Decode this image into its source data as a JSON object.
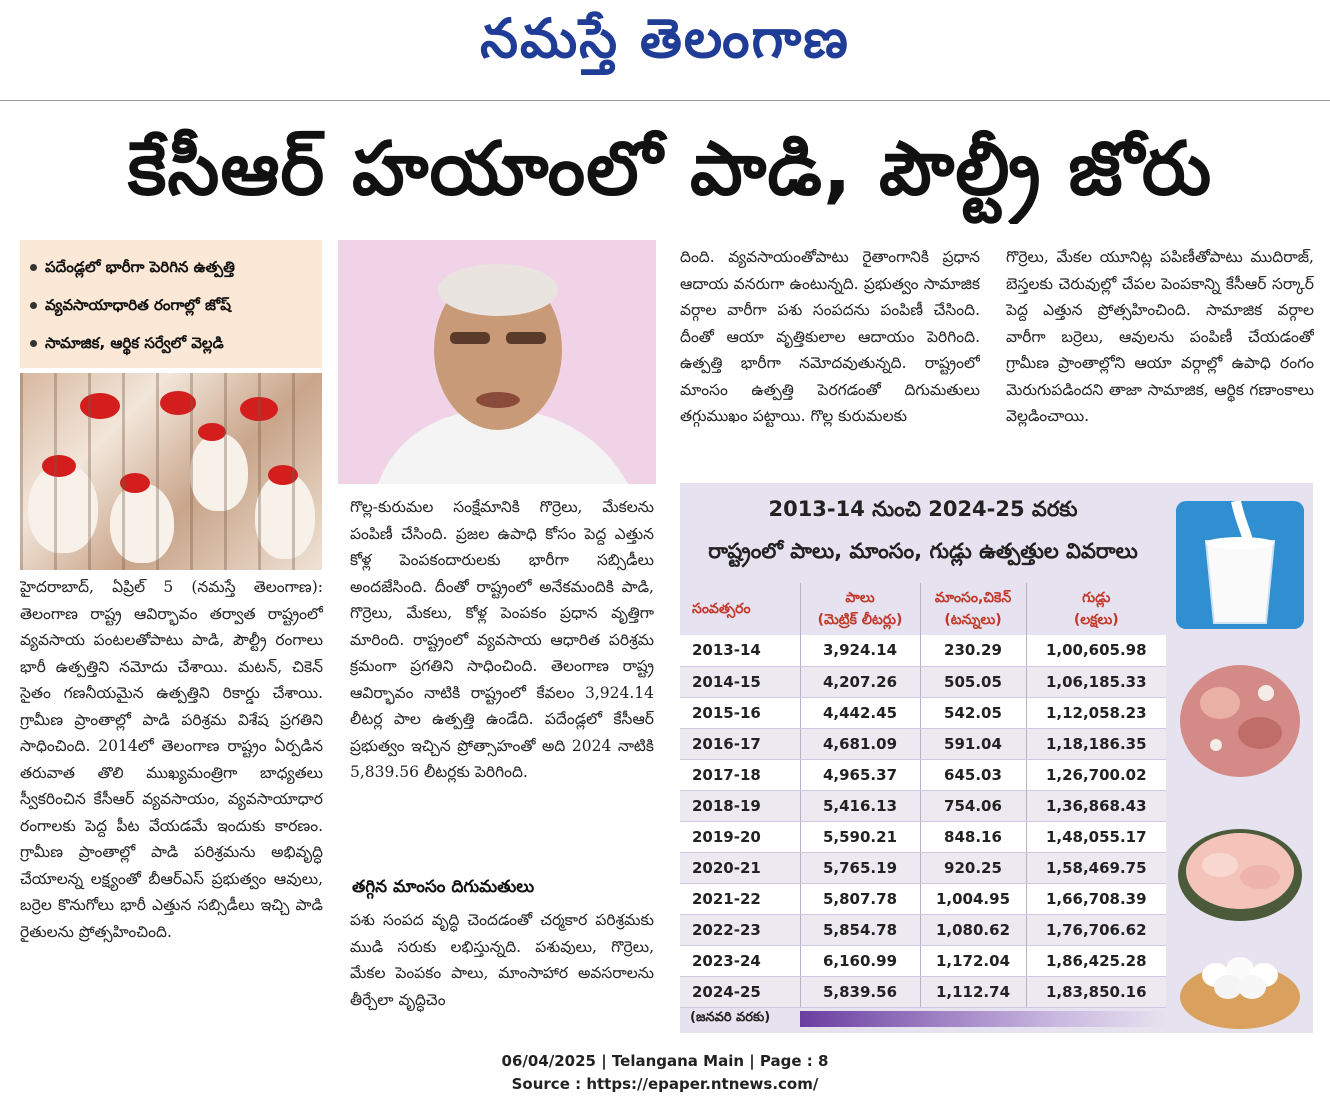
{
  "masthead": {
    "logo": "నమస్తే తెలంగాణ"
  },
  "headline": "కేసీఆర్ హయాంలో పాడి, పౌల్ట్రీ జోరు",
  "highlights": [
    "పదేండ్లలో భారీగా పెరిగిన ఉత్పత్తి",
    "వ్యవసాయాధారిత రంగాల్లో జోష్",
    "సామాజిక, ఆర్థిక సర్వేలో వెల్లడి"
  ],
  "col1": "హైదరాబాద్, ఏప్రిల్ 5 (నమస్తే తెలంగాణ): తెలంగాణ రాష్ట్ర ఆవిర్భావం తర్వాత రాష్ట్రంలో వ్యవసాయ పంటలతోపాటు పాడి, పౌల్ట్రీ రంగాలు భారీ ఉత్పత్తిని నమోదు చేశాయి. మటన్, చికెన్ సైతం గణనీయమైన ఉత్పత్తిని రికార్డు చేశాయి. గ్రామీణ ప్రాంతాల్లో పాడి పరిశ్రమ విశేష ప్రగతిని సాధించింది. 2014లో తెలంగాణ రాష్ట్రం ఏర్పడిన తరువాత తొలి ముఖ్యమంత్రిగా బాధ్యతలు స్వీకరించిన కేసీఆర్ వ్యవసాయం, వ్యవసాయాధార రంగాలకు పెద్ద పీట వేయడమే ఇందుకు కారణం. గ్రామీణ ప్రాంతాల్లో పాడి పరిశ్రమను అభివృద్ధి చేయాలన్న లక్ష్యంతో బీఆర్ఎస్ ప్రభుత్వం ఆవులు, బర్రెల కొనుగోలు భారీ ఎత్తున సబ్సిడీలు ఇచ్చి పాడి రైతులను ప్రోత్సహించింది.",
  "col2": "గొల్ల-కురుమల సంక్షేమానికి గొర్రెలు, మేకలను పంపిణీ చేసింది. ప్రజల ఉపాధి కోసం పెద్ద ఎత్తున కోళ్ల పెంపకందారులకు భారీగా సబ్సిడీలు అందజేసింది. దీంతో రాష్ట్రంలో అనేకమందికి పాడి, గొర్రెలు, మేకలు, కోళ్ల పెంపకం ప్రధాన వృత్తిగా మారింది. రాష్ట్రంలో వ్యవసాయ ఆధారిత పరిశ్రమ క్రమంగా ప్రగతిని సాధించింది. తెలంగాణ రాష్ట్ర ఆవిర్భావం నాటికి రాష్ట్రంలో కేవలం 3,924.14 లీటర్ల పాల ఉత్పత్తి ఉండేది. పదేండ్లలో కేసీఆర్ ప్రభుత్వం ఇచ్చిన ప్రోత్సాహంతో అది 2024 నాటికి 5,839.56 లీటర్లకు పెరిగింది.",
  "subhead": "తగ్గిన మాంసం దిగుమతులు",
  "col2b": "పశు సంపద వృద్ధి చెందడంతో చర్మకార పరిశ్రమకు ముడి సరుకు లభిస్తున్నది. పశువులు, గొర్రెలు, మేకల పెంపకం పాలు, మాంసాహార అవసరాలను తీర్చేలా వృద్ధిచెం",
  "col3": "దింది. వ్యవసాయంతోపాటు రైతాంగానికి ప్రధాన ఆదాయ వనరుగా ఉంటున్నది. ప్రభుత్వం సామాజిక వర్గాల వారీగా పశు సంపదను పంపిణీ చేసింది. దీంతో ఆయా వృత్తికులాల ఆదాయం పెరిగింది. ఉత్పత్తి భారీగా నమోదవుతున్నది. రాష్ట్రంలో మాంసం ఉత్పత్తి పెరగడంతో దిగుమతులు తగ్గుముఖం పట్టాయి. గొల్ల కురుమలకు",
  "col4": "గొర్రెలు, మేకల యూనిట్ల పపిణీతోపాటు ముదిరాజ్, బెస్తలకు చెరువుల్లో చేపల పెంపకాన్ని కేసీఆర్ సర్కార్ పెద్ద ఎత్తున ప్రోత్సహించింది. సామాజిక వర్గాల వారీగా బర్రెలు, ఆవులను పంపిణీ చేయడంతో గ్రామీణ ప్రాంతాల్లోని ఆయా వర్గాల్లో ఉపాధి రంగం మెరుగుపడిందని తాజా సామాజిక, ఆర్థిక గణాంకాలు వెల్లడించాయి.",
  "infobox": {
    "title1": "2013-14 నుంచి 2024-25 వరకు",
    "title2": "రాష్ట్రంలో పాలు, మాంసం, గుడ్లు ఉత్పత్తుల వివరాలు",
    "headers": [
      {
        "main": "సంవత్సరం",
        "sub": ""
      },
      {
        "main": "పాలు",
        "sub": "(మెట్రిక్ లీటర్లు)"
      },
      {
        "main": "మాంసం,చికెన్",
        "sub": "(టన్నులు)"
      },
      {
        "main": "గుడ్లు",
        "sub": "(లక్షలు)"
      }
    ],
    "rows": [
      [
        "2013-14",
        "3,924.14",
        "230.29",
        "1,00,605.98"
      ],
      [
        "2014-15",
        "4,207.26",
        "505.05",
        "1,06,185.33"
      ],
      [
        "2015-16",
        "4,442.45",
        "542.05",
        "1,12,058.23"
      ],
      [
        "2016-17",
        "4,681.09",
        "591.04",
        "1,18,186.35"
      ],
      [
        "2017-18",
        "4,965.37",
        "645.03",
        "1,26,700.02"
      ],
      [
        "2018-19",
        "5,416.13",
        "754.06",
        "1,36,868.43"
      ],
      [
        "2019-20",
        "5,590.21",
        "848.16",
        "1,48,055.17"
      ],
      [
        "2020-21",
        "5,765.19",
        "920.25",
        "1,58,469.75"
      ],
      [
        "2021-22",
        "5,807.78",
        "1,004.95",
        "1,66,708.39"
      ],
      [
        "2022-23",
        "5,854.78",
        "1,080.62",
        "1,76,706.62"
      ],
      [
        "2023-24",
        "6,160.99",
        "1,172.04",
        "1,86,425.28"
      ],
      [
        "2024-25",
        "5,839.56",
        "1,112.74",
        "1,83,850.16"
      ]
    ],
    "footnote": "(జనవరి వరకు)"
  },
  "footer": {
    "line1": "06/04/2025 | Telangana Main | Page : 8",
    "line2": "Source : https://epaper.ntnews.com/"
  }
}
